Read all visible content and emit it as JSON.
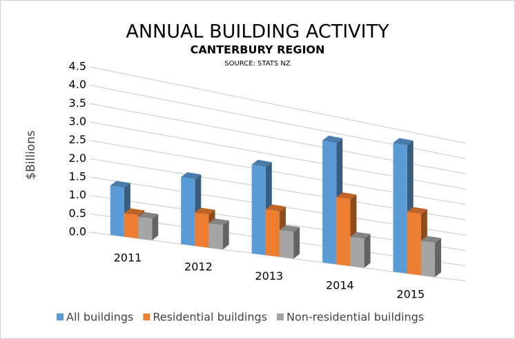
{
  "chart_data": {
    "type": "bar3d",
    "title": "ANNUAL BUILDING ACTIVITY",
    "subtitle": "CANTERBURY REGION",
    "source": "SOURCE: STATS NZ",
    "y_label": "$Billions",
    "categories": [
      "2011",
      "2012",
      "2013",
      "2014",
      "2015"
    ],
    "series": [
      {
        "name": "All buildings",
        "color": "#5b9bd5",
        "values": [
          1.35,
          1.9,
          2.6,
          3.7,
          4.05
        ]
      },
      {
        "name": "Residential buildings",
        "color": "#ed7d31",
        "values": [
          0.65,
          0.95,
          1.35,
          2.05,
          1.95
        ]
      },
      {
        "name": "Non-residential buildings",
        "color": "#a5a5a5",
        "values": [
          0.6,
          0.7,
          0.8,
          0.9,
          1.1
        ]
      }
    ],
    "ylim": [
      0,
      4.5
    ],
    "yticks": [
      {
        "value": 0,
        "label": "0.0"
      },
      0.5,
      {
        "value": 1,
        "label": "1.0"
      },
      1.5,
      {
        "value": 2,
        "label": "2.0"
      },
      2.5,
      {
        "value": 3,
        "label": "3.0"
      },
      3.5,
      {
        "value": 4,
        "label": "4.0"
      },
      4.5
    ],
    "grid": true,
    "legend": "bottom"
  }
}
